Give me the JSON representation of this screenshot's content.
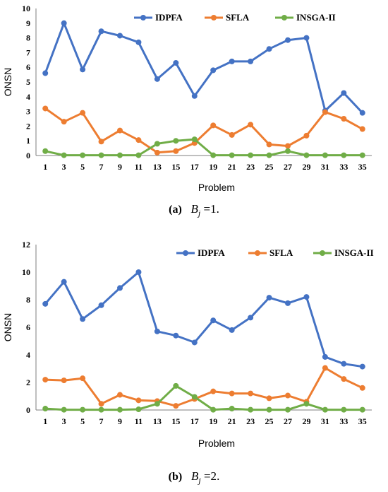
{
  "colors": {
    "IDPFA": "#4472C4",
    "SFLA": "#ED7D31",
    "INSGA-II": "#70AD47"
  },
  "chart_data": [
    {
      "type": "line",
      "xlabel": "Problem",
      "ylabel": "ONSN",
      "ylim": [
        0,
        10
      ],
      "yticks": [
        "0",
        "1",
        "2",
        "3",
        "4",
        "5",
        "6",
        "7",
        "8",
        "9",
        "10"
      ],
      "x": [
        1,
        3,
        5,
        7,
        9,
        11,
        13,
        15,
        17,
        19,
        21,
        23,
        25,
        27,
        29,
        31,
        33,
        35
      ],
      "legend": "top-right",
      "grid": false,
      "series": [
        {
          "name": "IDPFA",
          "values": [
            5.6,
            9.0,
            5.85,
            8.45,
            8.15,
            7.7,
            5.2,
            6.3,
            4.05,
            5.8,
            6.4,
            6.4,
            7.25,
            7.85,
            8.0,
            3.05,
            4.25,
            2.9
          ]
        },
        {
          "name": "SFLA",
          "values": [
            3.2,
            2.3,
            2.9,
            0.95,
            1.7,
            1.05,
            0.2,
            0.3,
            0.85,
            2.05,
            1.4,
            2.1,
            0.75,
            0.65,
            1.35,
            2.95,
            2.5,
            1.8
          ]
        },
        {
          "name": "INSGA-II",
          "values": [
            0.3,
            0.02,
            0.02,
            0.02,
            0.02,
            0.02,
            0.8,
            1.0,
            1.1,
            0.02,
            0.02,
            0.02,
            0.02,
            0.3,
            0.02,
            0.02,
            0.02,
            0.02
          ]
        }
      ]
    },
    {
      "type": "line",
      "xlabel": "Problem",
      "ylabel": "ONSN",
      "ylim": [
        0,
        12
      ],
      "yticks": [
        "0",
        "2",
        "4",
        "6",
        "8",
        "10",
        "12"
      ],
      "x": [
        1,
        3,
        5,
        7,
        9,
        11,
        13,
        15,
        17,
        19,
        21,
        23,
        25,
        27,
        29,
        31,
        33,
        35
      ],
      "legend": "top-right",
      "grid": false,
      "series": [
        {
          "name": "IDPFA",
          "values": [
            7.7,
            9.3,
            6.6,
            7.6,
            8.85,
            10.0,
            5.7,
            5.4,
            4.9,
            6.5,
            5.8,
            6.7,
            8.15,
            7.75,
            8.2,
            3.85,
            3.35,
            3.15
          ]
        },
        {
          "name": "SFLA",
          "values": [
            2.2,
            2.15,
            2.3,
            0.45,
            1.1,
            0.7,
            0.65,
            0.3,
            0.8,
            1.35,
            1.2,
            1.2,
            0.85,
            1.05,
            0.6,
            3.05,
            2.25,
            1.6
          ]
        },
        {
          "name": "INSGA-II",
          "values": [
            0.1,
            0.02,
            0.02,
            0.02,
            0.02,
            0.05,
            0.45,
            1.75,
            0.95,
            0.02,
            0.1,
            0.02,
            0.02,
            0.02,
            0.45,
            0.02,
            0.02,
            0.02
          ]
        }
      ]
    }
  ],
  "captions": [
    {
      "label": "(a)",
      "symbol": "B",
      "subscript": "j",
      "value": "=1",
      "end": "."
    },
    {
      "label": "(b)",
      "symbol": "B",
      "subscript": "j",
      "value": "=2",
      "end": "."
    }
  ]
}
